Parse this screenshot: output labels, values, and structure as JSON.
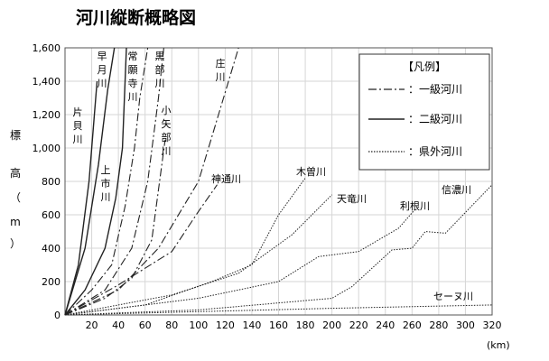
{
  "chart_data": {
    "type": "line",
    "title": "河川縦断概略図",
    "ylabel": "標高（m）",
    "x_unit": "(km)",
    "xlim": [
      0,
      320
    ],
    "ylim": [
      0,
      1600
    ],
    "x_ticks": [
      20,
      40,
      60,
      80,
      100,
      120,
      140,
      160,
      180,
      200,
      220,
      240,
      260,
      280,
      300,
      320
    ],
    "y_ticks": [
      0,
      200,
      400,
      600,
      800,
      1000,
      1200,
      1400,
      1600
    ],
    "y_tick_labels": [
      "0",
      "200",
      "400",
      "600",
      "800",
      "1,000",
      "1,200",
      "1,400",
      "1,600"
    ],
    "grid": true,
    "legend": {
      "title": "【凡例】",
      "position": "top-right",
      "items": [
        {
          "style": "dashdot",
          "label": "：一級河川"
        },
        {
          "style": "solid",
          "label": "：二級河川"
        },
        {
          "style": "dotted",
          "label": "：県外河川"
        }
      ]
    },
    "series": [
      {
        "name": "片貝川",
        "class": "二級",
        "x": [
          0,
          10,
          18,
          24
        ],
        "y": [
          0,
          300,
          800,
          1400
        ]
      },
      {
        "name": "早月川",
        "class": "二級",
        "x": [
          0,
          15,
          25,
          32,
          37
        ],
        "y": [
          0,
          400,
          900,
          1350,
          1600
        ]
      },
      {
        "name": "上市川",
        "class": "二級",
        "x": [
          0,
          15,
          30,
          38,
          43,
          46
        ],
        "y": [
          0,
          150,
          400,
          700,
          1000,
          1600
        ]
      },
      {
        "name": "常願寺川",
        "class": "一級",
        "x": [
          0,
          20,
          35,
          45,
          52,
          56,
          62
        ],
        "y": [
          0,
          150,
          300,
          650,
          1000,
          1300,
          1600
        ]
      },
      {
        "name": "黒部川",
        "class": "一級",
        "x": [
          0,
          30,
          50,
          62,
          70,
          74
        ],
        "y": [
          0,
          150,
          400,
          800,
          1300,
          1600
        ]
      },
      {
        "name": "小矢部川",
        "class": "一級",
        "x": [
          0,
          30,
          50,
          65,
          75
        ],
        "y": [
          0,
          100,
          220,
          450,
          1050
        ]
      },
      {
        "name": "庄川",
        "class": "一級",
        "x": [
          0,
          40,
          70,
          100,
          115,
          130
        ],
        "y": [
          0,
          150,
          400,
          800,
          1200,
          1600
        ]
      },
      {
        "name": "神通川",
        "class": "一級",
        "x": [
          0,
          40,
          80,
          100,
          114
        ],
        "y": [
          0,
          180,
          380,
          620,
          780
        ]
      },
      {
        "name": "木曽川",
        "class": "県外",
        "x": [
          0,
          60,
          110,
          140,
          160,
          180
        ],
        "y": [
          0,
          60,
          200,
          300,
          600,
          820
        ]
      },
      {
        "name": "天竜川",
        "class": "県外",
        "x": [
          0,
          80,
          130,
          170,
          200
        ],
        "y": [
          0,
          120,
          250,
          480,
          720
        ]
      },
      {
        "name": "利根川",
        "class": "県外",
        "x": [
          0,
          100,
          160,
          190,
          220,
          250,
          262
        ],
        "y": [
          0,
          100,
          200,
          350,
          380,
          520,
          630
        ]
      },
      {
        "name": "信濃川",
        "class": "県外",
        "x": [
          0,
          100,
          200,
          215,
          245,
          260,
          270,
          285,
          320
        ],
        "y": [
          0,
          30,
          100,
          170,
          390,
          400,
          500,
          490,
          780
        ]
      },
      {
        "name": "セーヌ川",
        "class": "県外",
        "x": [
          0,
          100,
          200,
          320
        ],
        "y": [
          0,
          20,
          40,
          60
        ]
      }
    ]
  }
}
